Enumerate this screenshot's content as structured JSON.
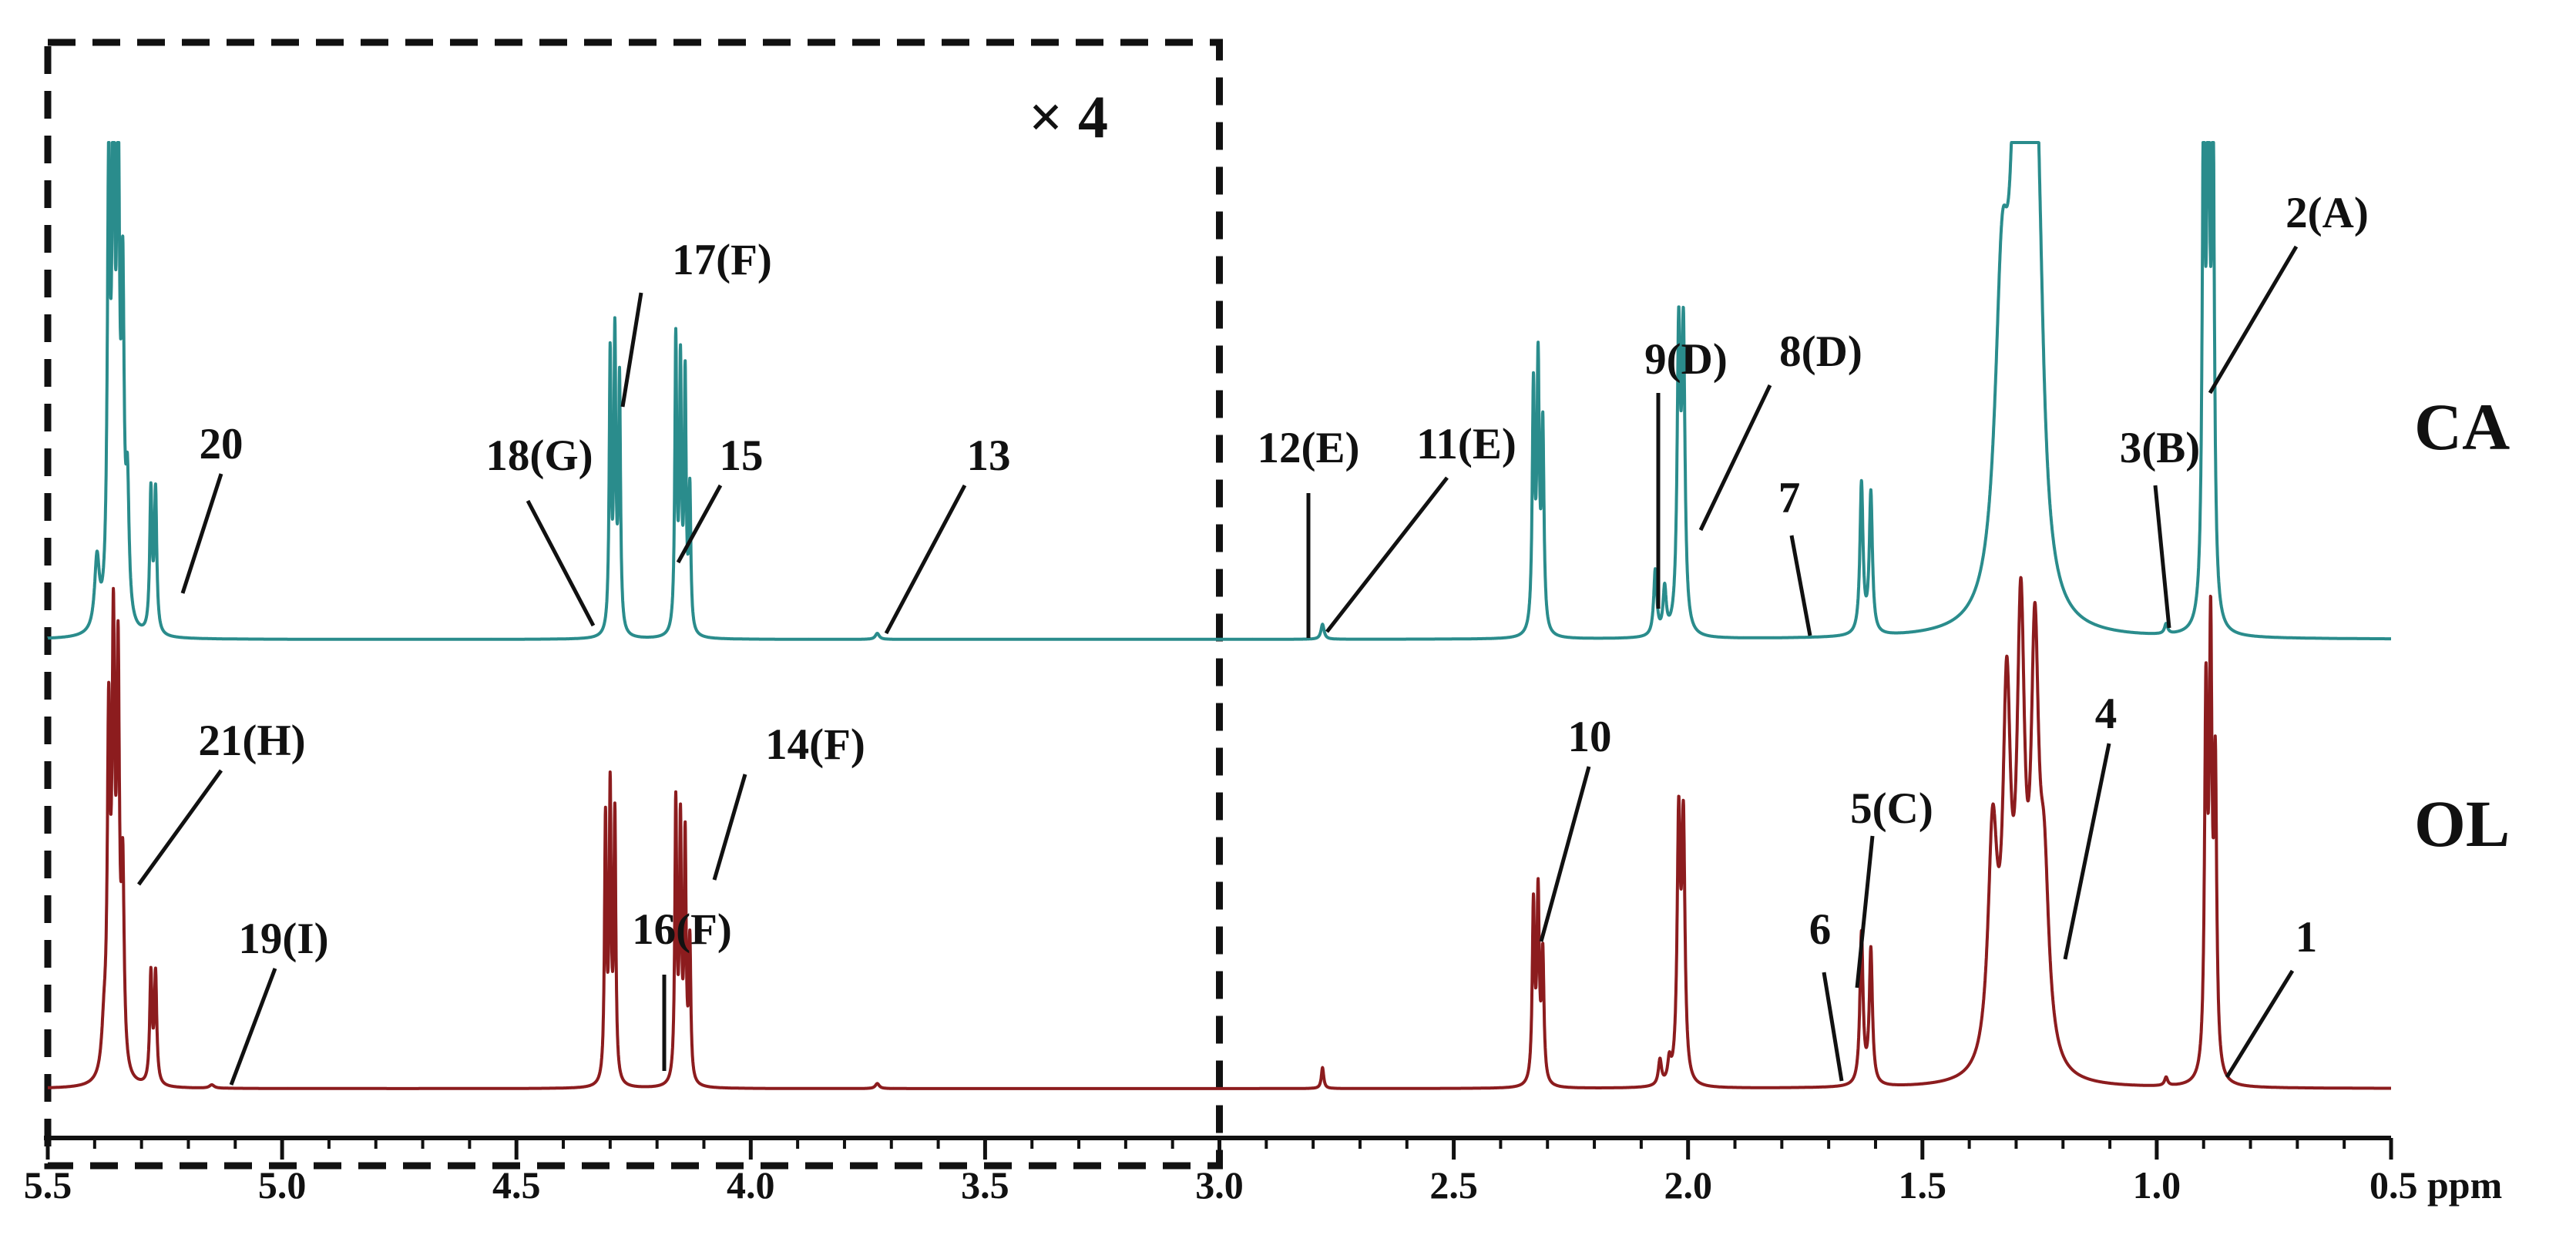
{
  "colors": {
    "CA": "#2a8c8c",
    "OL": "#8c1c1e",
    "axis": "#111111",
    "text": "#111111"
  },
  "chart_data": {
    "type": "line",
    "title": "",
    "xlabel": "ppm",
    "ylabel": "",
    "xlim": [
      5.5,
      0.5
    ],
    "x_reversed": true,
    "grid": false,
    "ticks": [
      {
        "value": 5.5,
        "label": "5.5"
      },
      {
        "value": 5.0,
        "label": "5.0"
      },
      {
        "value": 4.5,
        "label": "4.5"
      },
      {
        "value": 4.0,
        "label": "4.0"
      },
      {
        "value": 3.5,
        "label": "3.5"
      },
      {
        "value": 3.0,
        "label": "3.0"
      },
      {
        "value": 2.5,
        "label": "2.5"
      },
      {
        "value": 2.0,
        "label": "2.0"
      },
      {
        "value": 1.5,
        "label": "1.5"
      },
      {
        "value": 1.0,
        "label": "1.0"
      },
      {
        "value": 0.5,
        "label": "0.5 ppm"
      }
    ],
    "inset": {
      "x_range": [
        5.5,
        3.0
      ],
      "label": "× 4"
    },
    "series": [
      {
        "name": "CA",
        "baseline": 0.0,
        "peaks": [
          {
            "ppm": 5.395,
            "h": 0.14,
            "w": 0.006
          },
          {
            "ppm": 5.37,
            "h": 0.86,
            "w": 0.0035
          },
          {
            "ppm": 5.36,
            "h": 1.0,
            "w": 0.0035
          },
          {
            "ppm": 5.35,
            "h": 0.98,
            "w": 0.0035
          },
          {
            "ppm": 5.34,
            "h": 0.62,
            "w": 0.0035
          },
          {
            "ppm": 5.33,
            "h": 0.25,
            "w": 0.004
          },
          {
            "ppm": 5.28,
            "h": 0.28,
            "w": 0.003
          },
          {
            "ppm": 5.27,
            "h": 0.28,
            "w": 0.003
          },
          {
            "ppm": 4.3,
            "h": 0.55,
            "w": 0.0025
          },
          {
            "ppm": 4.29,
            "h": 0.58,
            "w": 0.0025
          },
          {
            "ppm": 4.28,
            "h": 0.5,
            "w": 0.0025
          },
          {
            "ppm": 4.16,
            "h": 0.58,
            "w": 0.0025
          },
          {
            "ppm": 4.15,
            "h": 0.52,
            "w": 0.0025
          },
          {
            "ppm": 4.14,
            "h": 0.5,
            "w": 0.0025
          },
          {
            "ppm": 4.13,
            "h": 0.28,
            "w": 0.0025
          },
          {
            "ppm": 3.73,
            "h": 0.012,
            "w": 0.005
          },
          {
            "ppm": 2.78,
            "h": 0.03,
            "w": 0.004
          },
          {
            "ppm": 2.33,
            "h": 0.48,
            "w": 0.003
          },
          {
            "ppm": 2.32,
            "h": 0.52,
            "w": 0.003
          },
          {
            "ppm": 2.31,
            "h": 0.4,
            "w": 0.003
          },
          {
            "ppm": 2.07,
            "h": 0.13,
            "w": 0.004
          },
          {
            "ppm": 2.05,
            "h": 0.09,
            "w": 0.004
          },
          {
            "ppm": 2.02,
            "h": 0.58,
            "w": 0.004
          },
          {
            "ppm": 2.01,
            "h": 0.58,
            "w": 0.004
          },
          {
            "ppm": 1.63,
            "h": 0.3,
            "w": 0.004
          },
          {
            "ppm": 1.61,
            "h": 0.28,
            "w": 0.004
          },
          {
            "ppm": 1.33,
            "h": 0.6,
            "w": 0.018
          },
          {
            "ppm": 1.3,
            "h": 0.8,
            "w": 0.015
          },
          {
            "ppm": 1.27,
            "h": 2.0,
            "w": 0.012
          },
          {
            "ppm": 1.25,
            "h": 0.3,
            "w": 0.012
          },
          {
            "ppm": 0.98,
            "h": 0.02,
            "w": 0.004
          },
          {
            "ppm": 0.9,
            "h": 1.0,
            "w": 0.0035
          },
          {
            "ppm": 0.89,
            "h": 1.1,
            "w": 0.0035
          },
          {
            "ppm": 0.88,
            "h": 1.0,
            "w": 0.0035
          }
        ]
      },
      {
        "name": "OL",
        "baseline": 0.0,
        "peaks": [
          {
            "ppm": 5.38,
            "h": 0.1,
            "w": 0.006
          },
          {
            "ppm": 5.37,
            "h": 0.8,
            "w": 0.0035
          },
          {
            "ppm": 5.36,
            "h": 0.98,
            "w": 0.0035
          },
          {
            "ppm": 5.35,
            "h": 0.93,
            "w": 0.0035
          },
          {
            "ppm": 5.34,
            "h": 0.45,
            "w": 0.0035
          },
          {
            "ppm": 5.28,
            "h": 0.26,
            "w": 0.003
          },
          {
            "ppm": 5.27,
            "h": 0.26,
            "w": 0.003
          },
          {
            "ppm": 5.15,
            "h": 0.008,
            "w": 0.006
          },
          {
            "ppm": 4.31,
            "h": 0.62,
            "w": 0.0025
          },
          {
            "ppm": 4.3,
            "h": 0.68,
            "w": 0.0025
          },
          {
            "ppm": 4.29,
            "h": 0.63,
            "w": 0.0025
          },
          {
            "ppm": 4.16,
            "h": 0.66,
            "w": 0.0025
          },
          {
            "ppm": 4.15,
            "h": 0.6,
            "w": 0.0025
          },
          {
            "ppm": 4.14,
            "h": 0.57,
            "w": 0.0025
          },
          {
            "ppm": 4.13,
            "h": 0.33,
            "w": 0.0025
          },
          {
            "ppm": 3.73,
            "h": 0.012,
            "w": 0.005
          },
          {
            "ppm": 2.78,
            "h": 0.05,
            "w": 0.003
          },
          {
            "ppm": 2.33,
            "h": 0.42,
            "w": 0.003
          },
          {
            "ppm": 2.32,
            "h": 0.44,
            "w": 0.003
          },
          {
            "ppm": 2.31,
            "h": 0.3,
            "w": 0.003
          },
          {
            "ppm": 2.06,
            "h": 0.06,
            "w": 0.004
          },
          {
            "ppm": 2.04,
            "h": 0.05,
            "w": 0.004
          },
          {
            "ppm": 2.02,
            "h": 0.61,
            "w": 0.004
          },
          {
            "ppm": 2.01,
            "h": 0.6,
            "w": 0.004
          },
          {
            "ppm": 1.63,
            "h": 0.36,
            "w": 0.004
          },
          {
            "ppm": 1.61,
            "h": 0.32,
            "w": 0.004
          },
          {
            "ppm": 1.35,
            "h": 0.55,
            "w": 0.012
          },
          {
            "ppm": 1.32,
            "h": 0.82,
            "w": 0.01
          },
          {
            "ppm": 1.29,
            "h": 1.0,
            "w": 0.01
          },
          {
            "ppm": 1.26,
            "h": 0.92,
            "w": 0.01
          },
          {
            "ppm": 1.24,
            "h": 0.4,
            "w": 0.012
          },
          {
            "ppm": 0.98,
            "h": 0.02,
            "w": 0.004
          },
          {
            "ppm": 0.895,
            "h": 0.88,
            "w": 0.0035
          },
          {
            "ppm": 0.885,
            "h": 1.0,
            "w": 0.0035
          },
          {
            "ppm": 0.875,
            "h": 0.7,
            "w": 0.0035
          }
        ]
      }
    ],
    "annotations": [
      {
        "series": "CA",
        "text": "20",
        "ppm": 5.24,
        "dir": "up"
      },
      {
        "series": "CA",
        "text": "18(G)",
        "ppm": 4.32,
        "dir": "up"
      },
      {
        "series": "CA",
        "text": "17(F)",
        "ppm": 4.29,
        "dir": "up"
      },
      {
        "series": "CA",
        "text": "15",
        "ppm": 4.15,
        "dir": "up"
      },
      {
        "series": "CA",
        "text": "13",
        "ppm": 3.73,
        "dir": "up"
      },
      {
        "series": "CA",
        "text": "12(E)",
        "ppm": 2.83,
        "dir": "up"
      },
      {
        "series": "CA",
        "text": "11(E)",
        "ppm": 2.78,
        "dir": "up"
      },
      {
        "series": "CA",
        "text": "9(D)",
        "ppm": 2.06,
        "dir": "up"
      },
      {
        "series": "CA",
        "text": "8(D)",
        "ppm": 1.98,
        "dir": "up"
      },
      {
        "series": "CA",
        "text": "7",
        "ppm": 1.74,
        "dir": "up"
      },
      {
        "series": "CA",
        "text": "3(B)",
        "ppm": 0.97,
        "dir": "up"
      },
      {
        "series": "CA",
        "text": "2(A)",
        "ppm": 0.89,
        "dir": "up"
      },
      {
        "series": "OL",
        "text": "21(H)",
        "ppm": 5.33,
        "dir": "up"
      },
      {
        "series": "OL",
        "text": "19(I)",
        "ppm": 5.12,
        "dir": "up"
      },
      {
        "series": "OL",
        "text": "16(F)",
        "ppm": 4.19,
        "dir": "up"
      },
      {
        "series": "OL",
        "text": "14(F)",
        "ppm": 4.11,
        "dir": "up"
      },
      {
        "series": "OL",
        "text": "10",
        "ppm": 2.32,
        "dir": "up"
      },
      {
        "series": "OL",
        "text": "6",
        "ppm": 1.68,
        "dir": "up"
      },
      {
        "series": "OL",
        "text": "5(C)",
        "ppm": 1.65,
        "dir": "up"
      },
      {
        "series": "OL",
        "text": "4",
        "ppm": 1.21,
        "dir": "up"
      },
      {
        "series": "OL",
        "text": "1",
        "ppm": 0.86,
        "dir": "up"
      }
    ]
  }
}
